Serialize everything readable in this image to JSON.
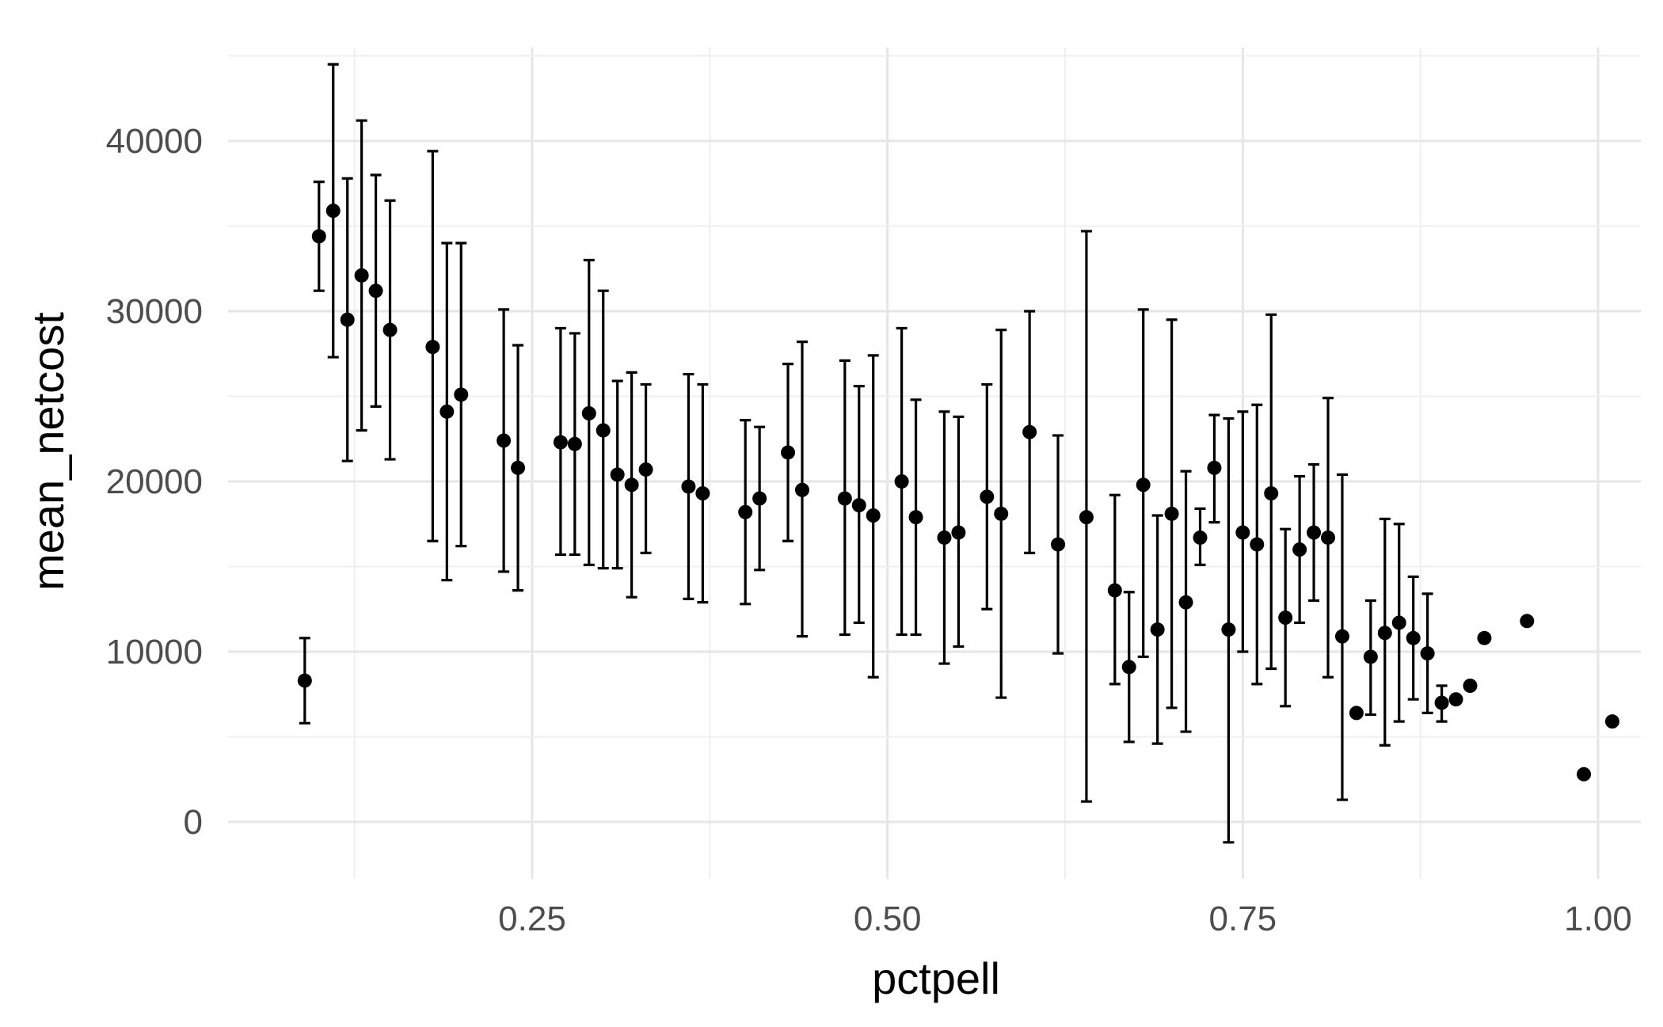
{
  "chart_data": {
    "type": "scatter",
    "title": "",
    "xlabel": "pctpell",
    "ylabel": "mean_netcost",
    "xlim": [
      0.0,
      1.05
    ],
    "ylim": [
      -3000,
      45500
    ],
    "x_ticks": [
      0.25,
      0.5,
      0.75,
      1.0
    ],
    "x_tick_labels": [
      "0.25",
      "0.50",
      "0.75",
      "1.00"
    ],
    "y_ticks": [
      0,
      10000,
      20000,
      30000,
      40000
    ],
    "y_tick_labels": [
      "0",
      "10000",
      "20000",
      "30000",
      "40000"
    ],
    "grid": true,
    "legend": "none",
    "colors": {
      "points": "#000000",
      "grid": "#e6e6e6",
      "background": "#ffffff"
    },
    "points": [
      {
        "x": 0.09,
        "y": 8300,
        "ymin": 5800,
        "ymax": 10800
      },
      {
        "x": 0.1,
        "y": 34400,
        "ymin": 31200,
        "ymax": 37600
      },
      {
        "x": 0.11,
        "y": 35900,
        "ymin": 27300,
        "ymax": 44500
      },
      {
        "x": 0.12,
        "y": 29500,
        "ymin": 21200,
        "ymax": 37800
      },
      {
        "x": 0.13,
        "y": 32100,
        "ymin": 23000,
        "ymax": 41200
      },
      {
        "x": 0.14,
        "y": 31200,
        "ymin": 24400,
        "ymax": 38000
      },
      {
        "x": 0.15,
        "y": 28900,
        "ymin": 21300,
        "ymax": 36500
      },
      {
        "x": 0.18,
        "y": 27900,
        "ymin": 16500,
        "ymax": 39400
      },
      {
        "x": 0.19,
        "y": 24100,
        "ymin": 14200,
        "ymax": 34000
      },
      {
        "x": 0.2,
        "y": 25100,
        "ymin": 16200,
        "ymax": 34000
      },
      {
        "x": 0.23,
        "y": 22400,
        "ymin": 14700,
        "ymax": 30100
      },
      {
        "x": 0.24,
        "y": 20800,
        "ymin": 13600,
        "ymax": 28000
      },
      {
        "x": 0.27,
        "y": 22300,
        "ymin": 15700,
        "ymax": 29000
      },
      {
        "x": 0.28,
        "y": 22200,
        "ymin": 15700,
        "ymax": 28700
      },
      {
        "x": 0.29,
        "y": 24000,
        "ymin": 15100,
        "ymax": 33000
      },
      {
        "x": 0.3,
        "y": 23000,
        "ymin": 14900,
        "ymax": 31200
      },
      {
        "x": 0.31,
        "y": 20400,
        "ymin": 14900,
        "ymax": 25900
      },
      {
        "x": 0.32,
        "y": 19800,
        "ymin": 13200,
        "ymax": 26400
      },
      {
        "x": 0.33,
        "y": 20700,
        "ymin": 15800,
        "ymax": 25700
      },
      {
        "x": 0.36,
        "y": 19700,
        "ymin": 13100,
        "ymax": 26300
      },
      {
        "x": 0.37,
        "y": 19300,
        "ymin": 12900,
        "ymax": 25700
      },
      {
        "x": 0.4,
        "y": 18200,
        "ymin": 12800,
        "ymax": 23600
      },
      {
        "x": 0.41,
        "y": 19000,
        "ymin": 14800,
        "ymax": 23200
      },
      {
        "x": 0.43,
        "y": 21700,
        "ymin": 16500,
        "ymax": 26900
      },
      {
        "x": 0.44,
        "y": 19500,
        "ymin": 10900,
        "ymax": 28200
      },
      {
        "x": 0.47,
        "y": 19000,
        "ymin": 11000,
        "ymax": 27100
      },
      {
        "x": 0.48,
        "y": 18600,
        "ymin": 11700,
        "ymax": 25600
      },
      {
        "x": 0.49,
        "y": 18000,
        "ymin": 8500,
        "ymax": 27400
      },
      {
        "x": 0.51,
        "y": 20000,
        "ymin": 11000,
        "ymax": 29000
      },
      {
        "x": 0.52,
        "y": 17900,
        "ymin": 11000,
        "ymax": 24800
      },
      {
        "x": 0.54,
        "y": 16700,
        "ymin": 9300,
        "ymax": 24100
      },
      {
        "x": 0.55,
        "y": 17000,
        "ymin": 10300,
        "ymax": 23800
      },
      {
        "x": 0.57,
        "y": 19100,
        "ymin": 12500,
        "ymax": 25700
      },
      {
        "x": 0.58,
        "y": 18100,
        "ymin": 7300,
        "ymax": 28900
      },
      {
        "x": 0.6,
        "y": 22900,
        "ymin": 15800,
        "ymax": 30000
      },
      {
        "x": 0.62,
        "y": 16300,
        "ymin": 9900,
        "ymax": 22700
      },
      {
        "x": 0.64,
        "y": 17900,
        "ymin": 1200,
        "ymax": 34700
      },
      {
        "x": 0.66,
        "y": 13600,
        "ymin": 8100,
        "ymax": 19200
      },
      {
        "x": 0.67,
        "y": 9100,
        "ymin": 4700,
        "ymax": 13500
      },
      {
        "x": 0.68,
        "y": 19800,
        "ymin": 9700,
        "ymax": 30100
      },
      {
        "x": 0.69,
        "y": 11300,
        "ymin": 4600,
        "ymax": 18000
      },
      {
        "x": 0.7,
        "y": 18100,
        "ymin": 6700,
        "ymax": 29500
      },
      {
        "x": 0.71,
        "y": 12900,
        "ymin": 5300,
        "ymax": 20600
      },
      {
        "x": 0.72,
        "y": 16700,
        "ymin": 15100,
        "ymax": 18400
      },
      {
        "x": 0.73,
        "y": 20800,
        "ymin": 17600,
        "ymax": 23900
      },
      {
        "x": 0.74,
        "y": 11300,
        "ymin": -1200,
        "ymax": 23700
      },
      {
        "x": 0.75,
        "y": 17000,
        "ymin": 10000,
        "ymax": 24100
      },
      {
        "x": 0.76,
        "y": 16300,
        "ymin": 8100,
        "ymax": 24500
      },
      {
        "x": 0.77,
        "y": 19300,
        "ymin": 9000,
        "ymax": 29800
      },
      {
        "x": 0.78,
        "y": 12000,
        "ymin": 6800,
        "ymax": 17200
      },
      {
        "x": 0.79,
        "y": 16000,
        "ymin": 11700,
        "ymax": 20300
      },
      {
        "x": 0.8,
        "y": 17000,
        "ymin": 13000,
        "ymax": 21000
      },
      {
        "x": 0.81,
        "y": 16700,
        "ymin": 8500,
        "ymax": 24900
      },
      {
        "x": 0.82,
        "y": 10900,
        "ymin": 1300,
        "ymax": 20400
      },
      {
        "x": 0.83,
        "y": 6400
      },
      {
        "x": 0.84,
        "y": 9700,
        "ymin": 6300,
        "ymax": 13000
      },
      {
        "x": 0.85,
        "y": 11100,
        "ymin": 4500,
        "ymax": 17800
      },
      {
        "x": 0.86,
        "y": 11700,
        "ymin": 5900,
        "ymax": 17500
      },
      {
        "x": 0.87,
        "y": 10800,
        "ymin": 7200,
        "ymax": 14400
      },
      {
        "x": 0.88,
        "y": 9900,
        "ymin": 6400,
        "ymax": 13400
      },
      {
        "x": 0.89,
        "y": 7000,
        "ymin": 5900,
        "ymax": 8000
      },
      {
        "x": 0.9,
        "y": 7200
      },
      {
        "x": 0.91,
        "y": 8000
      },
      {
        "x": 0.92,
        "y": 10800
      },
      {
        "x": 0.95,
        "y": 11800
      },
      {
        "x": 0.99,
        "y": 2800
      },
      {
        "x": 1.01,
        "y": 5900
      }
    ]
  }
}
